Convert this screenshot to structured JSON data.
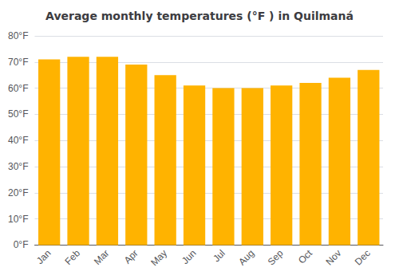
{
  "chart_data": {
    "type": "bar",
    "title": "Average monthly temperatures (°F ) in Quilmaná",
    "categories": [
      "Jan",
      "Feb",
      "Mar",
      "Apr",
      "May",
      "Jun",
      "Jul",
      "Aug",
      "Sep",
      "Oct",
      "Nov",
      "Dec"
    ],
    "values": [
      71,
      72,
      72,
      69,
      65,
      61,
      60,
      60,
      61,
      62,
      64,
      67
    ],
    "color": "#FFB300",
    "ylim": [
      0,
      80
    ],
    "yticks": [
      {
        "value": 0,
        "label": "0°F"
      },
      {
        "value": 10,
        "label": "10°F"
      },
      {
        "value": 20,
        "label": "20°F"
      },
      {
        "value": 30,
        "label": "30°F"
      },
      {
        "value": 40,
        "label": "40°F"
      },
      {
        "value": 50,
        "label": "50°F"
      },
      {
        "value": 60,
        "label": "60°F"
      },
      {
        "value": 70,
        "label": "70°F"
      },
      {
        "value": 80,
        "label": "80°F"
      }
    ],
    "grid": true
  }
}
